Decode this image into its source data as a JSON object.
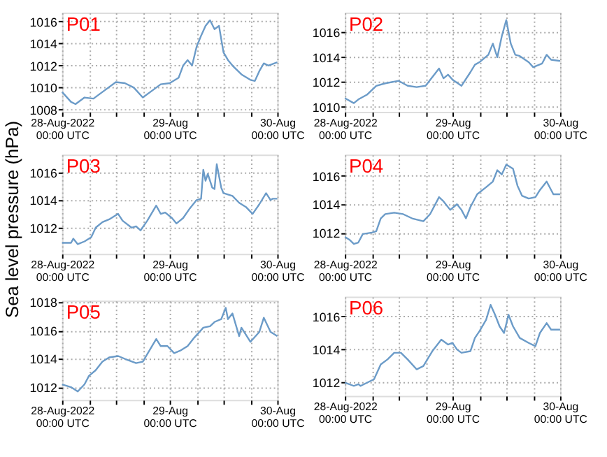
{
  "chart_data": [
    {
      "type": "line",
      "title": "P01",
      "grid": true,
      "xlim": [
        "2022-08-28T00:00",
        "2022-08-30T00:00"
      ],
      "ylim": [
        1007.8,
        1016.8
      ],
      "yticks": [
        1008,
        1010,
        1012,
        1014,
        1016
      ],
      "xticks": [
        {
          "value": "2022-08-28T00:00",
          "label": "28-Aug-2022\n00:00 UTC"
        },
        {
          "value": "2022-08-28T06:00",
          "label": null
        },
        {
          "value": "2022-08-28T12:00",
          "label": null
        },
        {
          "value": "2022-08-28T18:00",
          "label": null
        },
        {
          "value": "2022-08-29T00:00",
          "label": "29-Aug\n00:00 UTC"
        },
        {
          "value": "2022-08-29T06:00",
          "label": null
        },
        {
          "value": "2022-08-29T12:00",
          "label": null
        },
        {
          "value": "2022-08-29T18:00",
          "label": null
        },
        {
          "value": "2022-08-30T00:00",
          "label": "30-Aug\n00:00 UTC"
        }
      ],
      "x": [
        "2022-08-28T00:00",
        "2022-08-28T02:00",
        "2022-08-28T03:00",
        "2022-08-28T05:00",
        "2022-08-28T07:00",
        "2022-08-28T09:00",
        "2022-08-28T12:00",
        "2022-08-28T14:00",
        "2022-08-28T16:00",
        "2022-08-28T18:00",
        "2022-08-28T20:00",
        "2022-08-28T22:00",
        "2022-08-29T00:00",
        "2022-08-29T02:00",
        "2022-08-29T03:00",
        "2022-08-29T04:00",
        "2022-08-29T05:00",
        "2022-08-29T06:00",
        "2022-08-29T07:00",
        "2022-08-29T08:00",
        "2022-08-29T09:00",
        "2022-08-29T10:00",
        "2022-08-29T11:00",
        "2022-08-29T12:00",
        "2022-08-29T13:00",
        "2022-08-29T14:00",
        "2022-08-29T16:00",
        "2022-08-29T18:00",
        "2022-08-29T19:00",
        "2022-08-29T20:00",
        "2022-08-29T21:00",
        "2022-08-29T22:00",
        "2022-08-30T00:00"
      ],
      "series": [
        {
          "color": "#6b9bc8",
          "values": [
            1009.6,
            1008.7,
            1008.5,
            1009.1,
            1009.0,
            1009.6,
            1010.5,
            1010.4,
            1010.0,
            1009.1,
            1009.7,
            1010.3,
            1010.4,
            1010.9,
            1012.0,
            1012.5,
            1012.0,
            1013.7,
            1014.7,
            1015.6,
            1016.1,
            1015.3,
            1015.6,
            1013.2,
            1012.5,
            1012.0,
            1011.2,
            1010.7,
            1010.6,
            1011.5,
            1012.2,
            1012.0,
            1012.3
          ]
        }
      ]
    },
    {
      "type": "line",
      "title": "P02",
      "grid": true,
      "xlim": [
        "2022-08-28T00:00",
        "2022-08-30T00:00"
      ],
      "ylim": [
        1009.6,
        1017.6
      ],
      "yticks": [
        1010,
        1012,
        1014,
        1016
      ],
      "xticks": [
        {
          "value": "2022-08-28T00:00",
          "label": "28-Aug-2022\n00:00 UTC"
        },
        {
          "value": "2022-08-28T06:00",
          "label": null
        },
        {
          "value": "2022-08-28T12:00",
          "label": null
        },
        {
          "value": "2022-08-28T18:00",
          "label": null
        },
        {
          "value": "2022-08-29T00:00",
          "label": "29-Aug\n00:00 UTC"
        },
        {
          "value": "2022-08-29T06:00",
          "label": null
        },
        {
          "value": "2022-08-29T12:00",
          "label": null
        },
        {
          "value": "2022-08-29T18:00",
          "label": null
        },
        {
          "value": "2022-08-30T00:00",
          "label": "30-Aug\n00:00 UTC"
        }
      ],
      "x": [
        "2022-08-28T00:00",
        "2022-08-28T02:00",
        "2022-08-28T03:00",
        "2022-08-28T05:00",
        "2022-08-28T07:00",
        "2022-08-28T09:00",
        "2022-08-28T12:00",
        "2022-08-28T14:00",
        "2022-08-28T16:00",
        "2022-08-28T18:00",
        "2022-08-28T21:00",
        "2022-08-28T22:00",
        "2022-08-28T23:00",
        "2022-08-29T00:00",
        "2022-08-29T02:00",
        "2022-08-29T04:00",
        "2022-08-29T05:00",
        "2022-08-29T06:00",
        "2022-08-29T08:00",
        "2022-08-29T09:00",
        "2022-08-29T10:00",
        "2022-08-29T11:00",
        "2022-08-29T12:00",
        "2022-08-29T13:00",
        "2022-08-29T14:00",
        "2022-08-29T15:00",
        "2022-08-29T17:00",
        "2022-08-29T18:00",
        "2022-08-29T20:00",
        "2022-08-29T21:00",
        "2022-08-29T22:00",
        "2022-08-30T00:00"
      ],
      "series": [
        {
          "color": "#6b9bc8",
          "values": [
            1010.7,
            1010.3,
            1010.6,
            1011.0,
            1011.7,
            1011.9,
            1012.1,
            1011.7,
            1011.6,
            1011.7,
            1013.1,
            1012.3,
            1012.6,
            1012.2,
            1011.7,
            1012.8,
            1013.4,
            1013.6,
            1014.2,
            1015.1,
            1014.0,
            1015.7,
            1017.0,
            1015.1,
            1014.2,
            1014.1,
            1013.6,
            1013.2,
            1013.5,
            1014.2,
            1013.8,
            1013.7
          ]
        }
      ]
    },
    {
      "type": "line",
      "title": "P03",
      "ylabel": "Sea level pressure (hPa)",
      "grid": true,
      "xlim": [
        "2022-08-28T00:00",
        "2022-08-30T00:00"
      ],
      "ylim": [
        1010.1,
        1017.3
      ],
      "yticks": [
        1012,
        1014,
        1016
      ],
      "xticks": [
        {
          "value": "2022-08-28T00:00",
          "label": "28-Aug-2022\n00:00 UTC"
        },
        {
          "value": "2022-08-28T06:00",
          "label": null
        },
        {
          "value": "2022-08-28T12:00",
          "label": null
        },
        {
          "value": "2022-08-28T18:00",
          "label": null
        },
        {
          "value": "2022-08-29T00:00",
          "label": "29-Aug\n00:00 UTC"
        },
        {
          "value": "2022-08-29T06:00",
          "label": null
        },
        {
          "value": "2022-08-29T12:00",
          "label": null
        },
        {
          "value": "2022-08-29T18:00",
          "label": null
        },
        {
          "value": "2022-08-30T00:00",
          "label": "30-Aug\n00:00 UTC"
        }
      ],
      "x": [
        "2022-08-28T00:00",
        "2022-08-28T02:00",
        "2022-08-28T02:30",
        "2022-08-28T03:30",
        "2022-08-28T05:00",
        "2022-08-28T06:30",
        "2022-08-28T07:30",
        "2022-08-28T09:00",
        "2022-08-28T10:30",
        "2022-08-28T12:30",
        "2022-08-28T13:30",
        "2022-08-28T15:30",
        "2022-08-28T16:30",
        "2022-08-28T17:30",
        "2022-08-28T19:00",
        "2022-08-28T21:00",
        "2022-08-28T22:00",
        "2022-08-28T23:00",
        "2022-08-29T00:30",
        "2022-08-29T01:30",
        "2022-08-29T03:00",
        "2022-08-29T04:30",
        "2022-08-29T06:00",
        "2022-08-29T07:00",
        "2022-08-29T07:30",
        "2022-08-29T08:00",
        "2022-08-29T08:30",
        "2022-08-29T09:30",
        "2022-08-29T10:00",
        "2022-08-29T10:30",
        "2022-08-29T11:30",
        "2022-08-29T12:00",
        "2022-08-29T14:00",
        "2022-08-29T15:30",
        "2022-08-29T17:00",
        "2022-08-29T18:30",
        "2022-08-29T20:00",
        "2022-08-29T21:30",
        "2022-08-29T22:30",
        "2022-08-29T23:00",
        "2022-08-30T00:00"
      ],
      "series": [
        {
          "color": "#6b9bc8",
          "values": [
            1010.9,
            1010.9,
            1011.2,
            1010.8,
            1011.0,
            1011.3,
            1012.0,
            1012.4,
            1012.6,
            1013.0,
            1012.5,
            1012.0,
            1012.1,
            1011.8,
            1012.5,
            1013.6,
            1013.0,
            1013.1,
            1012.7,
            1012.3,
            1012.7,
            1013.4,
            1014.0,
            1014.1,
            1016.2,
            1015.4,
            1015.9,
            1014.9,
            1014.8,
            1016.6,
            1014.9,
            1014.5,
            1014.3,
            1013.8,
            1013.5,
            1013.0,
            1013.7,
            1014.5,
            1014.0,
            1014.1,
            1014.1
          ]
        }
      ]
    },
    {
      "type": "line",
      "title": "P04",
      "grid": true,
      "xlim": [
        "2022-08-28T00:00",
        "2022-08-30T00:00"
      ],
      "ylim": [
        1010.5,
        1017.5
      ],
      "yticks": [
        1012,
        1014,
        1016
      ],
      "xticks": [
        {
          "value": "2022-08-28T00:00",
          "label": "28-Aug-2022\n00:00 UTC"
        },
        {
          "value": "2022-08-28T06:00",
          "label": null
        },
        {
          "value": "2022-08-28T12:00",
          "label": null
        },
        {
          "value": "2022-08-28T18:00",
          "label": null
        },
        {
          "value": "2022-08-29T00:00",
          "label": "29-Aug\n00:00 UTC"
        },
        {
          "value": "2022-08-29T06:00",
          "label": null
        },
        {
          "value": "2022-08-29T12:00",
          "label": null
        },
        {
          "value": "2022-08-29T18:00",
          "label": null
        },
        {
          "value": "2022-08-30T00:00",
          "label": "30-Aug\n00:00 UTC"
        }
      ],
      "x": [
        "2022-08-28T00:00",
        "2022-08-28T01:00",
        "2022-08-28T02:00",
        "2022-08-28T03:00",
        "2022-08-28T04:00",
        "2022-08-28T06:00",
        "2022-08-28T07:00",
        "2022-08-28T08:00",
        "2022-08-28T09:00",
        "2022-08-28T11:00",
        "2022-08-28T13:00",
        "2022-08-28T15:00",
        "2022-08-28T17:30",
        "2022-08-28T19:00",
        "2022-08-28T21:00",
        "2022-08-28T22:00",
        "2022-08-28T23:30",
        "2022-08-29T01:00",
        "2022-08-29T02:00",
        "2022-08-29T03:00",
        "2022-08-29T04:00",
        "2022-08-29T05:30",
        "2022-08-29T07:30",
        "2022-08-29T09:00",
        "2022-08-29T10:00",
        "2022-08-29T11:00",
        "2022-08-29T12:00",
        "2022-08-29T13:30",
        "2022-08-29T14:30",
        "2022-08-29T15:30",
        "2022-08-29T17:00",
        "2022-08-29T18:30",
        "2022-08-29T19:30",
        "2022-08-29T21:00",
        "2022-08-29T22:30",
        "2022-08-30T00:00"
      ],
      "series": [
        {
          "color": "#6b9bc8",
          "values": [
            1011.7,
            1011.5,
            1011.2,
            1011.3,
            1011.9,
            1012.0,
            1012.1,
            1013.0,
            1013.3,
            1013.4,
            1013.3,
            1013.0,
            1012.8,
            1013.3,
            1014.5,
            1014.2,
            1013.6,
            1014.0,
            1013.6,
            1013.0,
            1013.8,
            1014.7,
            1015.2,
            1015.6,
            1016.4,
            1016.1,
            1016.8,
            1016.5,
            1015.3,
            1014.6,
            1014.4,
            1014.5,
            1015.0,
            1015.6,
            1014.7,
            1014.7
          ]
        }
      ]
    },
    {
      "type": "line",
      "title": "P05",
      "grid": true,
      "xlim": [
        "2022-08-28T00:00",
        "2022-08-30T00:00"
      ],
      "ylim": [
        1011.1,
        1018.1
      ],
      "yticks": [
        1012,
        1014,
        1016,
        1018
      ],
      "xticks": [
        {
          "value": "2022-08-28T00:00",
          "label": "28-Aug-2022\n00:00 UTC"
        },
        {
          "value": "2022-08-28T06:00",
          "label": null
        },
        {
          "value": "2022-08-28T12:00",
          "label": null
        },
        {
          "value": "2022-08-28T18:00",
          "label": null
        },
        {
          "value": "2022-08-29T00:00",
          "label": "29-Aug\n00:00 UTC"
        },
        {
          "value": "2022-08-29T06:00",
          "label": null
        },
        {
          "value": "2022-08-29T12:00",
          "label": null
        },
        {
          "value": "2022-08-29T18:00",
          "label": null
        },
        {
          "value": "2022-08-30T00:00",
          "label": "30-Aug\n00:00 UTC"
        }
      ],
      "x": [
        "2022-08-28T00:00",
        "2022-08-28T02:00",
        "2022-08-28T03:30",
        "2022-08-28T05:00",
        "2022-08-28T06:00",
        "2022-08-28T07:30",
        "2022-08-28T09:00",
        "2022-08-28T10:30",
        "2022-08-28T12:30",
        "2022-08-28T14:00",
        "2022-08-28T16:30",
        "2022-08-28T18:00",
        "2022-08-28T19:30",
        "2022-08-28T21:00",
        "2022-08-28T22:00",
        "2022-08-28T23:30",
        "2022-08-29T01:00",
        "2022-08-29T02:30",
        "2022-08-29T04:00",
        "2022-08-29T05:30",
        "2022-08-29T07:30",
        "2022-08-29T09:00",
        "2022-08-29T10:00",
        "2022-08-29T11:30",
        "2022-08-29T12:30",
        "2022-08-29T13:00",
        "2022-08-29T14:00",
        "2022-08-29T15:30",
        "2022-08-29T16:00",
        "2022-08-29T18:00",
        "2022-08-29T20:00",
        "2022-08-29T21:00",
        "2022-08-29T22:30",
        "2022-08-30T00:00"
      ],
      "series": [
        {
          "color": "#6b9bc8",
          "values": [
            1012.2,
            1012.0,
            1011.7,
            1012.2,
            1012.8,
            1013.2,
            1013.8,
            1014.1,
            1014.2,
            1014.0,
            1013.7,
            1013.8,
            1014.6,
            1015.4,
            1014.9,
            1014.9,
            1014.4,
            1014.6,
            1014.9,
            1015.5,
            1016.2,
            1016.3,
            1016.6,
            1016.8,
            1017.6,
            1016.8,
            1017.2,
            1015.6,
            1016.2,
            1015.2,
            1015.9,
            1016.9,
            1015.9,
            1015.6
          ]
        }
      ]
    },
    {
      "type": "line",
      "title": "P06",
      "grid": true,
      "xlim": [
        "2022-08-28T00:00",
        "2022-08-30T00:00"
      ],
      "ylim": [
        1011.2,
        1017.2
      ],
      "yticks": [
        1012,
        1014,
        1016
      ],
      "xticks": [
        {
          "value": "2022-08-28T00:00",
          "label": "28-Aug-2022\n00:00 UTC"
        },
        {
          "value": "2022-08-28T06:00",
          "label": null
        },
        {
          "value": "2022-08-28T12:00",
          "label": null
        },
        {
          "value": "2022-08-28T18:00",
          "label": null
        },
        {
          "value": "2022-08-29T00:00",
          "label": "29-Aug\n00:00 UTC"
        },
        {
          "value": "2022-08-29T06:00",
          "label": null
        },
        {
          "value": "2022-08-29T12:00",
          "label": null
        },
        {
          "value": "2022-08-29T18:00",
          "label": null
        },
        {
          "value": "2022-08-30T00:00",
          "label": "30-Aug\n00:00 UTC"
        }
      ],
      "x": [
        "2022-08-28T00:00",
        "2022-08-28T02:00",
        "2022-08-28T03:00",
        "2022-08-28T03:30",
        "2022-08-28T05:00",
        "2022-08-28T06:30",
        "2022-08-28T08:00",
        "2022-08-28T09:30",
        "2022-08-28T11:00",
        "2022-08-28T12:30",
        "2022-08-28T14:00",
        "2022-08-28T16:00",
        "2022-08-28T17:30",
        "2022-08-28T19:30",
        "2022-08-28T21:30",
        "2022-08-28T23:00",
        "2022-08-29T00:00",
        "2022-08-29T01:00",
        "2022-08-29T02:00",
        "2022-08-29T04:00",
        "2022-08-29T05:00",
        "2022-08-29T06:00",
        "2022-08-29T07:30",
        "2022-08-29T08:30",
        "2022-08-29T09:30",
        "2022-08-29T10:30",
        "2022-08-29T11:30",
        "2022-08-29T12:30",
        "2022-08-29T13:30",
        "2022-08-29T15:00",
        "2022-08-29T17:00",
        "2022-08-29T18:30",
        "2022-08-29T19:30",
        "2022-08-29T21:00",
        "2022-08-29T22:00",
        "2022-08-30T00:00"
      ],
      "series": [
        {
          "color": "#6b9bc8",
          "values": [
            1012.0,
            1011.8,
            1011.9,
            1011.8,
            1012.0,
            1012.2,
            1013.1,
            1013.4,
            1013.8,
            1013.8,
            1013.4,
            1012.8,
            1013.0,
            1013.9,
            1014.6,
            1014.3,
            1014.4,
            1014.0,
            1013.8,
            1013.9,
            1014.7,
            1015.1,
            1015.8,
            1016.7,
            1016.1,
            1015.4,
            1015.0,
            1016.1,
            1015.4,
            1014.7,
            1014.4,
            1014.2,
            1015.0,
            1015.6,
            1015.2,
            1015.2
          ]
        }
      ]
    }
  ]
}
